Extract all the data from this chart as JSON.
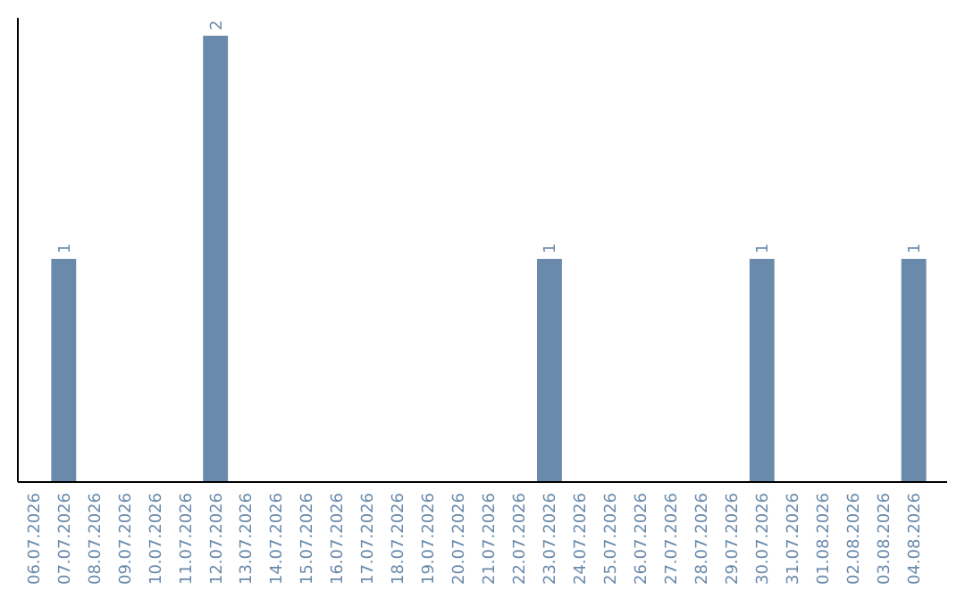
{
  "chart_data": {
    "type": "bar",
    "categories": [
      "06.07.2026",
      "07.07.2026",
      "08.07.2026",
      "09.07.2026",
      "10.07.2026",
      "11.07.2026",
      "12.07.2026",
      "13.07.2026",
      "14.07.2026",
      "15.07.2026",
      "16.07.2026",
      "17.07.2026",
      "18.07.2026",
      "19.07.2026",
      "20.07.2026",
      "21.07.2026",
      "22.07.2026",
      "23.07.2026",
      "24.07.2026",
      "25.07.2026",
      "26.07.2026",
      "27.07.2026",
      "28.07.2026",
      "29.07.2026",
      "30.07.2026",
      "31.07.2026",
      "01.08.2026",
      "02.08.2026",
      "03.08.2026",
      "04.08.2026"
    ],
    "values": [
      0,
      1,
      0,
      0,
      0,
      0,
      2,
      0,
      0,
      0,
      0,
      0,
      0,
      0,
      0,
      0,
      0,
      1,
      0,
      0,
      0,
      0,
      0,
      0,
      1,
      0,
      0,
      0,
      0,
      1
    ],
    "value_labels": [
      null,
      "1",
      null,
      null,
      null,
      null,
      "2",
      null,
      null,
      null,
      null,
      null,
      null,
      null,
      null,
      null,
      null,
      "1",
      null,
      null,
      null,
      null,
      null,
      null,
      "1",
      null,
      null,
      null,
      null,
      "1"
    ],
    "color": "#6a8aab"
  }
}
